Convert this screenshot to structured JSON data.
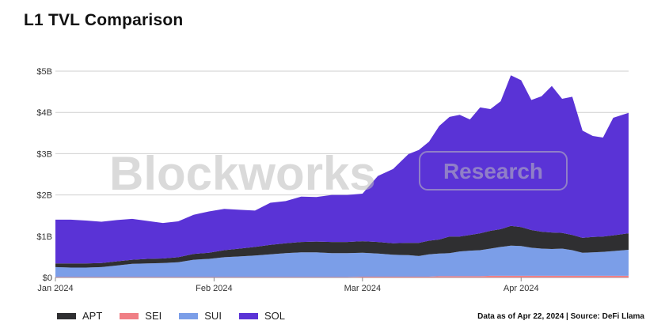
{
  "title": "L1 TVL Comparison",
  "source_note": "Data as of Apr 22, 2024 | Source: DeFi Llama",
  "watermark": {
    "logo_text": "Blockworks",
    "badge_text": "Research"
  },
  "colors": {
    "APT": "#2f2f31",
    "SEI": "#f07f85",
    "SUI": "#7b9ee8",
    "SOL": "#5a33d6"
  },
  "chart_data": {
    "type": "area",
    "stacked": true,
    "title": "L1 TVL Comparison",
    "xlabel": "",
    "ylabel": "",
    "ylim": [
      0,
      5000000000
    ],
    "xlim": [
      "2024-01-01",
      "2024-04-22"
    ],
    "x_ticks": [
      {
        "date": "2024-01-01",
        "label": "Jan 2024"
      },
      {
        "date": "2024-02-01",
        "label": "Feb 2024"
      },
      {
        "date": "2024-03-01",
        "label": "Mar 2024"
      },
      {
        "date": "2024-04-01",
        "label": "Apr 2024"
      }
    ],
    "y_ticks": [
      {
        "value": 0,
        "label": "$0"
      },
      {
        "value": 1000000000,
        "label": "$1B"
      },
      {
        "value": 2000000000,
        "label": "$2B"
      },
      {
        "value": 3000000000,
        "label": "$3B"
      },
      {
        "value": 4000000000,
        "label": "$4B"
      },
      {
        "value": 5000000000,
        "label": "$5B"
      }
    ],
    "grid": true,
    "legend_position": "bottom-left",
    "x": [
      "2024-01-01",
      "2024-01-04",
      "2024-01-07",
      "2024-01-10",
      "2024-01-13",
      "2024-01-16",
      "2024-01-19",
      "2024-01-22",
      "2024-01-25",
      "2024-01-28",
      "2024-01-31",
      "2024-02-03",
      "2024-02-06",
      "2024-02-09",
      "2024-02-12",
      "2024-02-15",
      "2024-02-18",
      "2024-02-21",
      "2024-02-24",
      "2024-02-27",
      "2024-03-01",
      "2024-03-04",
      "2024-03-07",
      "2024-03-10",
      "2024-03-12",
      "2024-03-14",
      "2024-03-16",
      "2024-03-18",
      "2024-03-20",
      "2024-03-22",
      "2024-03-24",
      "2024-03-26",
      "2024-03-28",
      "2024-03-30",
      "2024-04-01",
      "2024-04-03",
      "2024-04-05",
      "2024-04-07",
      "2024-04-09",
      "2024-04-11",
      "2024-04-13",
      "2024-04-15",
      "2024-04-17",
      "2024-04-19",
      "2024-04-22"
    ],
    "series": [
      {
        "name": "SEI",
        "values": [
          0.01,
          0.01,
          0.01,
          0.01,
          0.01,
          0.01,
          0.01,
          0.01,
          0.01,
          0.01,
          0.01,
          0.01,
          0.01,
          0.01,
          0.01,
          0.01,
          0.01,
          0.01,
          0.01,
          0.01,
          0.02,
          0.02,
          0.02,
          0.02,
          0.02,
          0.02,
          0.03,
          0.03,
          0.03,
          0.03,
          0.03,
          0.04,
          0.04,
          0.04,
          0.04,
          0.04,
          0.04,
          0.04,
          0.04,
          0.04,
          0.04,
          0.04,
          0.04,
          0.04,
          0.04
        ]
      },
      {
        "name": "SUI",
        "values": [
          0.24,
          0.23,
          0.23,
          0.24,
          0.28,
          0.32,
          0.33,
          0.34,
          0.36,
          0.42,
          0.44,
          0.48,
          0.5,
          0.52,
          0.55,
          0.58,
          0.6,
          0.6,
          0.58,
          0.58,
          0.58,
          0.56,
          0.53,
          0.52,
          0.5,
          0.54,
          0.55,
          0.56,
          0.6,
          0.62,
          0.63,
          0.66,
          0.7,
          0.73,
          0.72,
          0.68,
          0.66,
          0.65,
          0.66,
          0.62,
          0.56,
          0.57,
          0.58,
          0.6,
          0.63
        ]
      },
      {
        "name": "APT",
        "values": [
          0.09,
          0.1,
          0.1,
          0.1,
          0.1,
          0.1,
          0.11,
          0.11,
          0.12,
          0.14,
          0.15,
          0.17,
          0.19,
          0.21,
          0.23,
          0.24,
          0.25,
          0.26,
          0.27,
          0.27,
          0.28,
          0.28,
          0.28,
          0.3,
          0.32,
          0.33,
          0.34,
          0.4,
          0.36,
          0.38,
          0.41,
          0.43,
          0.43,
          0.48,
          0.46,
          0.43,
          0.41,
          0.4,
          0.38,
          0.37,
          0.36,
          0.37,
          0.37,
          0.38,
          0.4
        ]
      },
      {
        "name": "SOL",
        "values": [
          1.06,
          1.06,
          1.04,
          1.0,
          1.0,
          0.99,
          0.92,
          0.86,
          0.87,
          0.95,
          1.0,
          1.0,
          0.94,
          0.88,
          1.02,
          1.02,
          1.1,
          1.08,
          1.14,
          1.14,
          1.15,
          1.6,
          1.8,
          2.15,
          2.25,
          2.4,
          2.75,
          2.9,
          2.95,
          2.8,
          3.05,
          2.95,
          3.1,
          3.65,
          3.56,
          3.15,
          3.28,
          3.55,
          3.25,
          3.35,
          2.6,
          2.45,
          2.4,
          2.85,
          2.92
        ]
      }
    ]
  }
}
